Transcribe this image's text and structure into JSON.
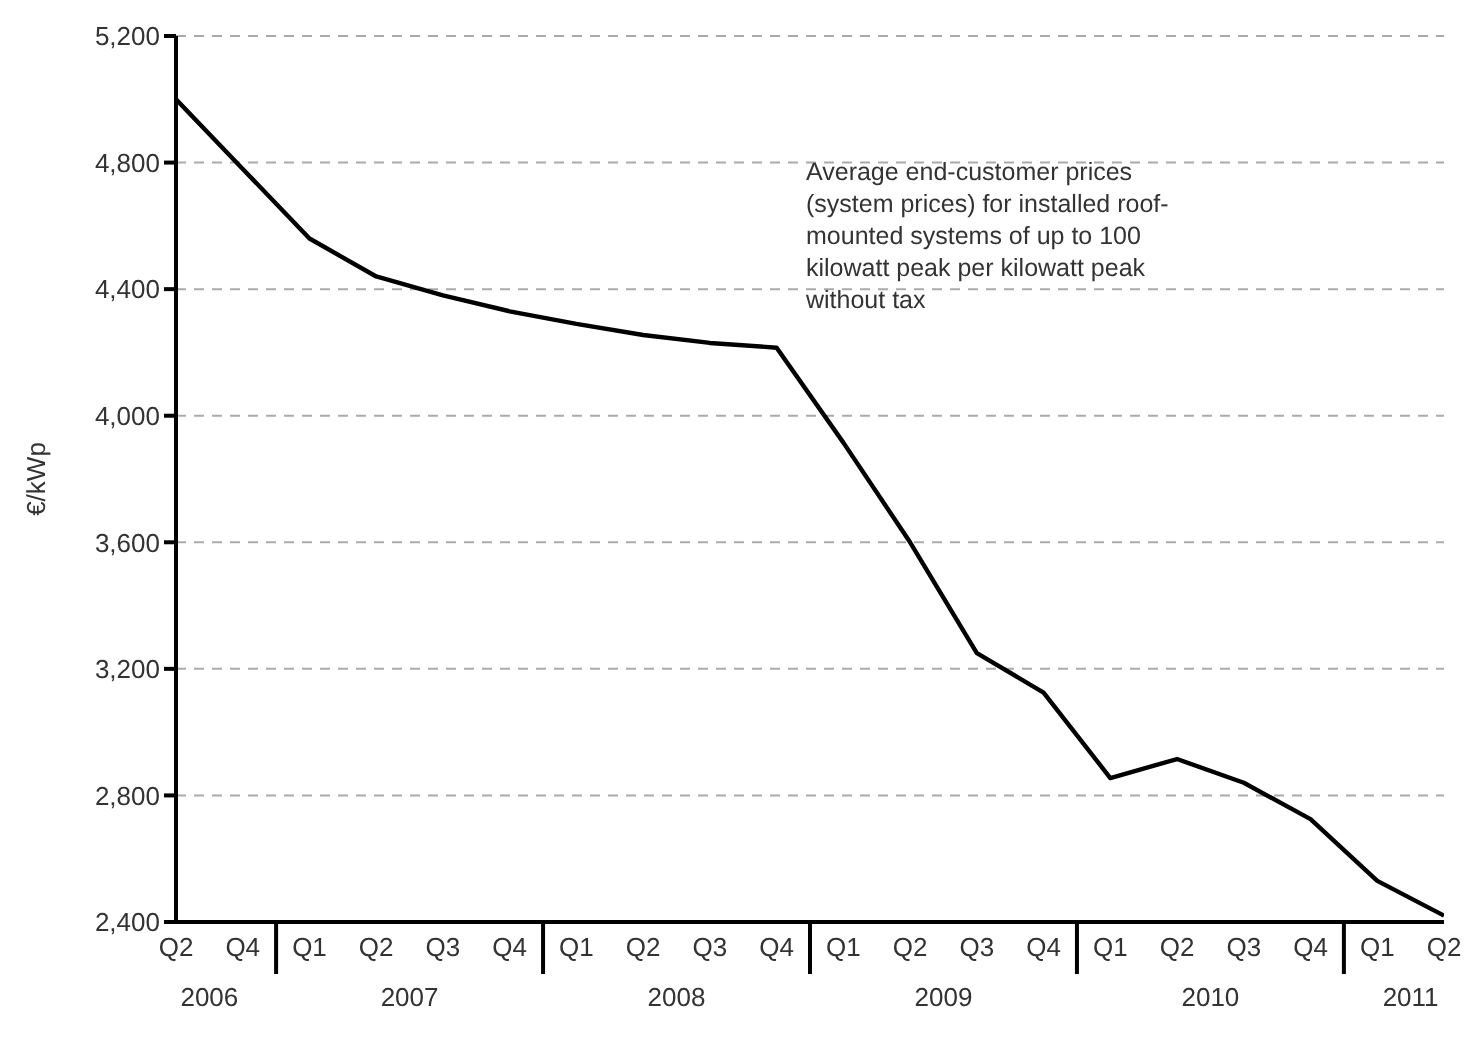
{
  "chart_data": {
    "type": "line",
    "ylabel": "€/kWp",
    "categories": [
      "Q2",
      "Q4",
      "Q1",
      "Q2",
      "Q3",
      "Q4",
      "Q1",
      "Q2",
      "Q3",
      "Q4",
      "Q1",
      "Q2",
      "Q3",
      "Q4",
      "Q1",
      "Q2",
      "Q3",
      "Q4",
      "Q1",
      "Q2"
    ],
    "series": [
      {
        "color": "#000000",
        "values": [
          5000,
          4780,
          4560,
          4440,
          4380,
          4330,
          4290,
          4255,
          4230,
          4215,
          3915,
          3600,
          3250,
          3125,
          2855,
          2915,
          2840,
          2725,
          2530,
          2420
        ]
      }
    ],
    "ylim": [
      2400,
      5200
    ],
    "yticks": [
      {
        "value": 2400,
        "label": "2,400"
      },
      {
        "value": 2800,
        "label": "2,800"
      },
      {
        "value": 3200,
        "label": "3,200"
      },
      {
        "value": 3600,
        "label": "3,600"
      },
      {
        "value": 4000,
        "label": "4,000"
      },
      {
        "value": 4400,
        "label": "4,400"
      },
      {
        "value": 4800,
        "label": "4,800"
      },
      {
        "value": 5200,
        "label": "5,200"
      }
    ],
    "grid": "y",
    "marker": "none",
    "line_style": "solid",
    "legend": false,
    "annotations": [
      "Average end-customer prices (system prices) for installed roof-mounted systems of up to 100 kilowatt peak per kilowatt peak without tax",
      "2006",
      "2007",
      "2008",
      "2009",
      "2010",
      "2011"
    ]
  }
}
